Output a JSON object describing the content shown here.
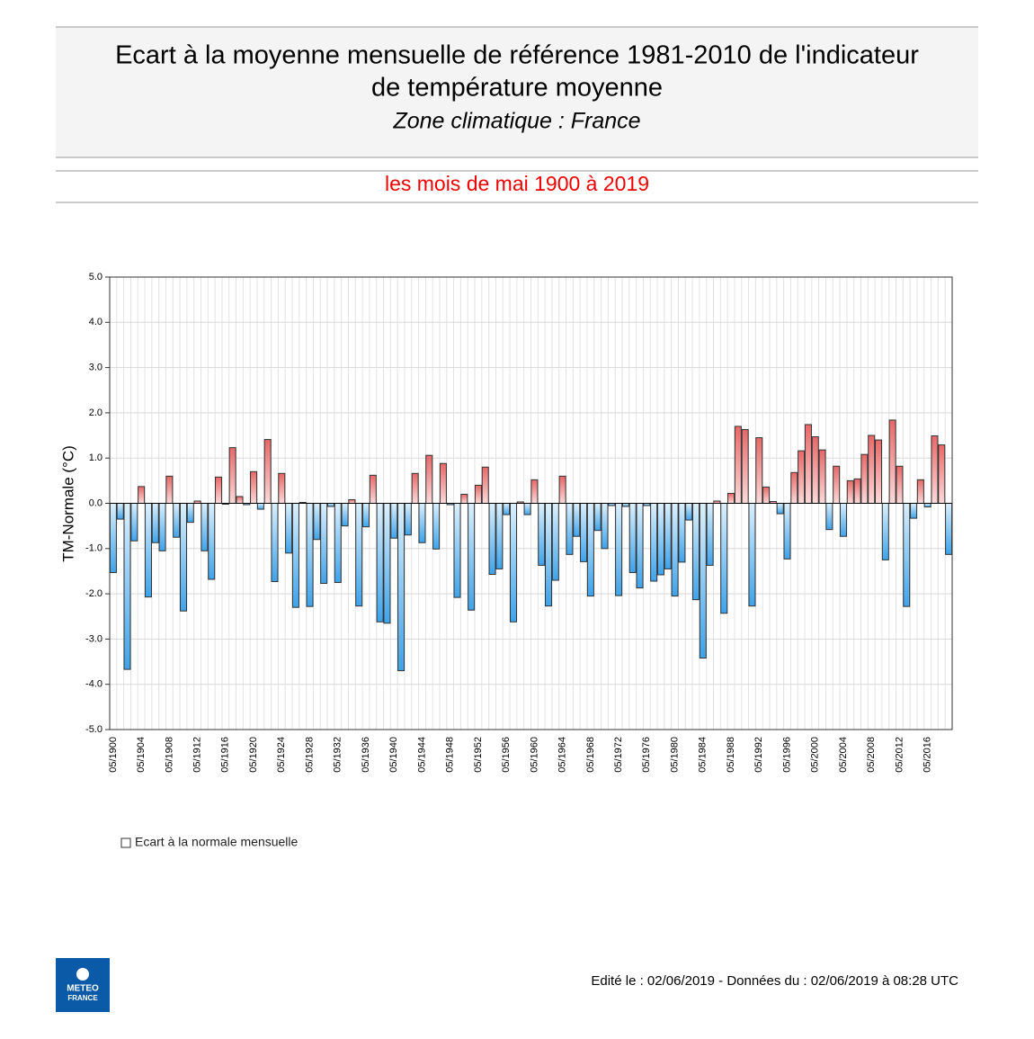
{
  "chart_data": {
    "type": "bar",
    "title": [
      "Ecart à la moyenne mensuelle de référence 1981-2010 de l'indicateur",
      "de température moyenne"
    ],
    "subtitle": "Zone climatique : France",
    "period": "les mois de mai 1900 à 2019",
    "y_label": "TM-Normale (°C)",
    "footer": "Edité le : 02/06/2019 - Données du : 02/06/2019 à 08:28 UTC",
    "logo": [
      "METEO",
      "FRANCE"
    ],
    "ylim": [
      -5,
      5
    ],
    "yticks": [
      {
        "value": 5,
        "label": "5.0"
      },
      {
        "value": 4,
        "label": "4.0"
      },
      {
        "value": 3,
        "label": "3.0"
      },
      {
        "value": 2,
        "label": "2.0"
      },
      {
        "value": 1,
        "label": "1.0"
      },
      {
        "value": 0,
        "label": "0.0"
      },
      {
        "value": -1,
        "label": "-1.0"
      },
      {
        "value": -2,
        "label": "-2.0"
      },
      {
        "value": -3,
        "label": "-3.0"
      },
      {
        "value": -4,
        "label": "-4.0"
      },
      {
        "value": -5,
        "label": "-5.0"
      }
    ],
    "grid": true,
    "colors": {
      "positive": [
        "#fcdada",
        "#e76868"
      ],
      "negative": [
        "#dcf0fd",
        "#3ea3ea"
      ]
    },
    "categories": [
      "05/1900",
      null,
      null,
      null,
      "05/1904",
      null,
      null,
      null,
      "05/1908",
      null,
      null,
      null,
      "05/1912",
      null,
      null,
      null,
      "05/1916",
      null,
      null,
      null,
      "05/1920",
      null,
      null,
      null,
      "05/1924",
      null,
      null,
      null,
      "05/1928",
      null,
      null,
      null,
      "05/1932",
      null,
      null,
      null,
      "05/1936",
      null,
      null,
      null,
      "05/1940",
      null,
      null,
      null,
      "05/1944",
      null,
      null,
      null,
      "05/1948",
      null,
      null,
      null,
      "05/1952",
      null,
      null,
      null,
      "05/1956",
      null,
      null,
      null,
      "05/1960",
      null,
      null,
      null,
      "05/1964",
      null,
      null,
      null,
      "05/1968",
      null,
      null,
      null,
      "05/1972",
      null,
      null,
      null,
      "05/1976",
      null,
      null,
      null,
      "05/1980",
      null,
      null,
      null,
      "05/1984",
      null,
      null,
      null,
      "05/1988",
      null,
      null,
      null,
      "05/1992",
      null,
      null,
      null,
      "05/1996",
      null,
      null,
      null,
      "05/2000",
      null,
      null,
      null,
      "05/2004",
      null,
      null,
      null,
      "05/2008",
      null,
      null,
      null,
      "05/2012",
      null,
      null,
      null,
      "05/2016",
      null,
      null,
      null
    ],
    "series": [
      {
        "name": "Ecart à la normale mensuelle",
        "values": [
          -1.53,
          -0.35,
          -3.67,
          -0.83,
          0.37,
          -2.07,
          -0.87,
          -1.05,
          0.6,
          -0.75,
          -2.38,
          -0.42,
          0.05,
          -1.05,
          -1.68,
          0.58,
          -0.02,
          1.23,
          0.15,
          -0.03,
          0.7,
          -0.13,
          1.41,
          -1.73,
          0.66,
          -1.1,
          -2.3,
          0.02,
          -2.28,
          -0.8,
          -1.77,
          -0.07,
          -1.75,
          -0.5,
          0.08,
          -2.27,
          -0.52,
          0.62,
          -2.62,
          -2.65,
          -0.77,
          -3.7,
          -0.7,
          0.66,
          -0.87,
          1.06,
          -1.01,
          0.88,
          -0.03,
          -2.08,
          0.2,
          -2.36,
          0.4,
          0.8,
          -1.57,
          -1.45,
          -0.25,
          -2.62,
          0.03,
          -0.25,
          0.52,
          -1.37,
          -2.27,
          -1.7,
          0.6,
          -1.13,
          -0.73,
          -1.29,
          -2.05,
          -0.6,
          -1.0,
          -0.05,
          -2.04,
          -0.07,
          -1.53,
          -1.87,
          -0.05,
          -1.72,
          -1.58,
          -1.45,
          -2.05,
          -1.3,
          -0.37,
          -2.13,
          -3.42,
          -1.37,
          0.05,
          -2.43,
          0.22,
          1.7,
          1.63,
          -2.27,
          1.45,
          0.36,
          0.04,
          -0.23,
          -1.23,
          0.68,
          1.16,
          1.74,
          1.47,
          1.18,
          -0.58,
          0.82,
          -0.73,
          0.5,
          0.54,
          1.08,
          1.5,
          1.4,
          -1.25,
          1.84,
          0.82,
          -2.28,
          -0.33,
          0.52,
          -0.08,
          1.49,
          1.29,
          -1.13
        ]
      }
    ]
  }
}
